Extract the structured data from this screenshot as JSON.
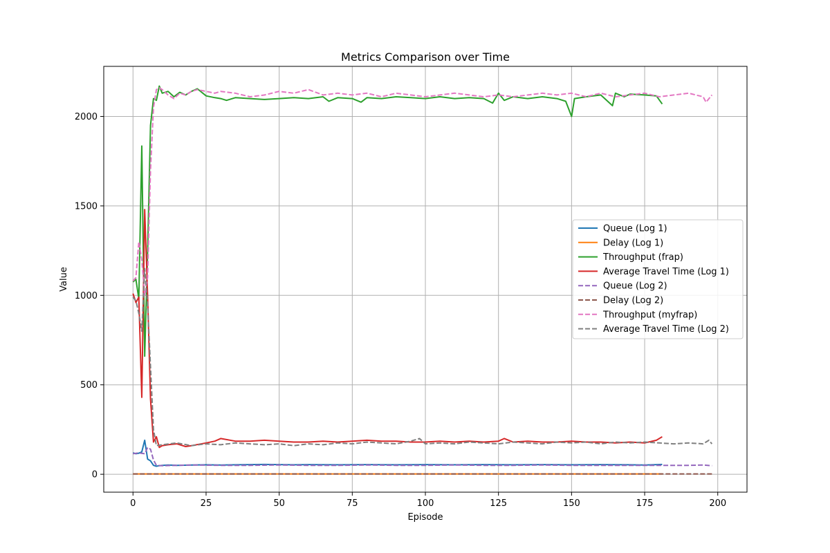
{
  "chart_data": {
    "type": "line",
    "title": "Metrics Comparison over Time",
    "xlabel": "Episode",
    "ylabel": "Value",
    "xlim": [
      -10,
      210
    ],
    "ylim": [
      -100,
      2280
    ],
    "xticks": [
      0,
      25,
      50,
      75,
      100,
      125,
      150,
      175,
      200
    ],
    "yticks": [
      0,
      500,
      1000,
      1500,
      2000
    ],
    "grid": true,
    "legend_position": "center-right",
    "series": [
      {
        "name": "Queue (Log 1)",
        "color": "#1f77b4",
        "dash": "solid",
        "points": [
          [
            0,
            120
          ],
          [
            1,
            115
          ],
          [
            2,
            118
          ],
          [
            3,
            125
          ],
          [
            4,
            190
          ],
          [
            5,
            85
          ],
          [
            6,
            75
          ],
          [
            7,
            50
          ],
          [
            8,
            45
          ],
          [
            9,
            48
          ],
          [
            10,
            50
          ],
          [
            12,
            52
          ],
          [
            15,
            50
          ],
          [
            20,
            52
          ],
          [
            25,
            53
          ],
          [
            30,
            52
          ],
          [
            35,
            53
          ],
          [
            40,
            54
          ],
          [
            45,
            55
          ],
          [
            50,
            54
          ],
          [
            55,
            53
          ],
          [
            60,
            54
          ],
          [
            70,
            53
          ],
          [
            80,
            54
          ],
          [
            90,
            53
          ],
          [
            100,
            54
          ],
          [
            110,
            53
          ],
          [
            120,
            54
          ],
          [
            130,
            53
          ],
          [
            140,
            54
          ],
          [
            150,
            53
          ],
          [
            160,
            54
          ],
          [
            170,
            53
          ],
          [
            175,
            52
          ],
          [
            181,
            55
          ]
        ]
      },
      {
        "name": "Delay (Log 1)",
        "color": "#ff7f0e",
        "dash": "solid",
        "points": [
          [
            0,
            2
          ],
          [
            50,
            2
          ],
          [
            100,
            2
          ],
          [
            150,
            2
          ],
          [
            181,
            2
          ]
        ]
      },
      {
        "name": "Throughput (frap)",
        "color": "#2ca02c",
        "dash": "solid",
        "points": [
          [
            0,
            1075
          ],
          [
            1,
            1090
          ],
          [
            2,
            980
          ],
          [
            3,
            1835
          ],
          [
            4,
            660
          ],
          [
            5,
            1240
          ],
          [
            6,
            1950
          ],
          [
            7,
            2100
          ],
          [
            8,
            2090
          ],
          [
            9,
            2170
          ],
          [
            10,
            2130
          ],
          [
            12,
            2140
          ],
          [
            14,
            2110
          ],
          [
            16,
            2135
          ],
          [
            18,
            2120
          ],
          [
            20,
            2140
          ],
          [
            22,
            2155
          ],
          [
            25,
            2115
          ],
          [
            28,
            2105
          ],
          [
            30,
            2100
          ],
          [
            32,
            2090
          ],
          [
            35,
            2105
          ],
          [
            40,
            2100
          ],
          [
            45,
            2095
          ],
          [
            50,
            2100
          ],
          [
            55,
            2105
          ],
          [
            60,
            2100
          ],
          [
            65,
            2110
          ],
          [
            67,
            2085
          ],
          [
            70,
            2105
          ],
          [
            75,
            2100
          ],
          [
            78,
            2080
          ],
          [
            80,
            2105
          ],
          [
            85,
            2100
          ],
          [
            90,
            2110
          ],
          [
            95,
            2105
          ],
          [
            100,
            2100
          ],
          [
            105,
            2110
          ],
          [
            110,
            2100
          ],
          [
            115,
            2105
          ],
          [
            120,
            2100
          ],
          [
            123,
            2075
          ],
          [
            125,
            2130
          ],
          [
            127,
            2090
          ],
          [
            130,
            2110
          ],
          [
            135,
            2100
          ],
          [
            140,
            2110
          ],
          [
            145,
            2100
          ],
          [
            148,
            2085
          ],
          [
            150,
            2000
          ],
          [
            151,
            2100
          ],
          [
            155,
            2110
          ],
          [
            160,
            2120
          ],
          [
            164,
            2060
          ],
          [
            165,
            2130
          ],
          [
            168,
            2110
          ],
          [
            170,
            2125
          ],
          [
            175,
            2120
          ],
          [
            179,
            2115
          ],
          [
            181,
            2070
          ]
        ]
      },
      {
        "name": "Average Travel Time (Log 1)",
        "color": "#d62728",
        "dash": "solid",
        "points": [
          [
            0,
            1010
          ],
          [
            1,
            960
          ],
          [
            2,
            990
          ],
          [
            3,
            430
          ],
          [
            4,
            1480
          ],
          [
            5,
            1000
          ],
          [
            6,
            420
          ],
          [
            7,
            180
          ],
          [
            8,
            210
          ],
          [
            9,
            150
          ],
          [
            10,
            160
          ],
          [
            12,
            165
          ],
          [
            15,
            170
          ],
          [
            18,
            155
          ],
          [
            20,
            160
          ],
          [
            25,
            175
          ],
          [
            28,
            185
          ],
          [
            30,
            200
          ],
          [
            35,
            185
          ],
          [
            40,
            185
          ],
          [
            45,
            190
          ],
          [
            50,
            185
          ],
          [
            55,
            180
          ],
          [
            60,
            180
          ],
          [
            65,
            185
          ],
          [
            70,
            180
          ],
          [
            75,
            185
          ],
          [
            80,
            190
          ],
          [
            85,
            185
          ],
          [
            90,
            185
          ],
          [
            95,
            180
          ],
          [
            100,
            180
          ],
          [
            105,
            185
          ],
          [
            110,
            180
          ],
          [
            115,
            185
          ],
          [
            120,
            180
          ],
          [
            125,
            185
          ],
          [
            127,
            200
          ],
          [
            130,
            180
          ],
          [
            135,
            185
          ],
          [
            140,
            180
          ],
          [
            145,
            180
          ],
          [
            150,
            185
          ],
          [
            155,
            180
          ],
          [
            160,
            180
          ],
          [
            165,
            175
          ],
          [
            170,
            180
          ],
          [
            175,
            175
          ],
          [
            179,
            190
          ],
          [
            181,
            210
          ]
        ]
      },
      {
        "name": "Queue (Log 2)",
        "color": "#9467bd",
        "dash": "dashed",
        "points": [
          [
            0,
            115
          ],
          [
            2,
            120
          ],
          [
            4,
            115
          ],
          [
            5,
            150
          ],
          [
            6,
            140
          ],
          [
            7,
            80
          ],
          [
            8,
            50
          ],
          [
            10,
            48
          ],
          [
            15,
            50
          ],
          [
            20,
            52
          ],
          [
            30,
            50
          ],
          [
            40,
            50
          ],
          [
            50,
            52
          ],
          [
            60,
            50
          ],
          [
            70,
            50
          ],
          [
            80,
            52
          ],
          [
            90,
            50
          ],
          [
            100,
            50
          ],
          [
            110,
            52
          ],
          [
            120,
            50
          ],
          [
            130,
            50
          ],
          [
            140,
            52
          ],
          [
            150,
            50
          ],
          [
            160,
            50
          ],
          [
            170,
            50
          ],
          [
            180,
            50
          ],
          [
            190,
            50
          ],
          [
            195,
            52
          ],
          [
            198,
            48
          ]
        ]
      },
      {
        "name": "Delay (Log 2)",
        "color": "#8c564b",
        "dash": "dashed",
        "points": [
          [
            0,
            2
          ],
          [
            50,
            2
          ],
          [
            100,
            2
          ],
          [
            150,
            2
          ],
          [
            198,
            2
          ]
        ]
      },
      {
        "name": "Throughput (myfrap)",
        "color": "#e377c2",
        "dash": "dashed",
        "points": [
          [
            0,
            1080
          ],
          [
            1,
            1100
          ],
          [
            2,
            1300
          ],
          [
            3,
            1200
          ],
          [
            4,
            1000
          ],
          [
            5,
            1100
          ],
          [
            6,
            1700
          ],
          [
            7,
            2050
          ],
          [
            8,
            2150
          ],
          [
            9,
            2160
          ],
          [
            10,
            2150
          ],
          [
            12,
            2120
          ],
          [
            14,
            2100
          ],
          [
            16,
            2130
          ],
          [
            18,
            2120
          ],
          [
            20,
            2140
          ],
          [
            22,
            2150
          ],
          [
            25,
            2140
          ],
          [
            28,
            2130
          ],
          [
            30,
            2140
          ],
          [
            35,
            2130
          ],
          [
            40,
            2110
          ],
          [
            45,
            2120
          ],
          [
            50,
            2140
          ],
          [
            55,
            2130
          ],
          [
            60,
            2150
          ],
          [
            65,
            2120
          ],
          [
            70,
            2130
          ],
          [
            75,
            2120
          ],
          [
            80,
            2130
          ],
          [
            85,
            2110
          ],
          [
            90,
            2130
          ],
          [
            95,
            2120
          ],
          [
            100,
            2110
          ],
          [
            105,
            2120
          ],
          [
            110,
            2130
          ],
          [
            115,
            2120
          ],
          [
            120,
            2110
          ],
          [
            125,
            2120
          ],
          [
            130,
            2110
          ],
          [
            135,
            2120
          ],
          [
            140,
            2130
          ],
          [
            145,
            2120
          ],
          [
            150,
            2130
          ],
          [
            155,
            2110
          ],
          [
            160,
            2130
          ],
          [
            165,
            2110
          ],
          [
            170,
            2120
          ],
          [
            175,
            2130
          ],
          [
            180,
            2110
          ],
          [
            185,
            2120
          ],
          [
            190,
            2130
          ],
          [
            195,
            2110
          ],
          [
            196,
            2080
          ],
          [
            198,
            2120
          ]
        ]
      },
      {
        "name": "Average Travel Time (Log 2)",
        "color": "#7f7f7f",
        "dash": "dashed",
        "points": [
          [
            0,
            990
          ],
          [
            1,
            970
          ],
          [
            2,
            900
          ],
          [
            3,
            800
          ],
          [
            4,
            1150
          ],
          [
            5,
            950
          ],
          [
            6,
            600
          ],
          [
            7,
            250
          ],
          [
            8,
            160
          ],
          [
            10,
            165
          ],
          [
            15,
            175
          ],
          [
            20,
            160
          ],
          [
            25,
            170
          ],
          [
            30,
            165
          ],
          [
            35,
            175
          ],
          [
            40,
            170
          ],
          [
            45,
            165
          ],
          [
            50,
            170
          ],
          [
            55,
            160
          ],
          [
            60,
            170
          ],
          [
            65,
            165
          ],
          [
            70,
            175
          ],
          [
            75,
            170
          ],
          [
            80,
            180
          ],
          [
            85,
            175
          ],
          [
            90,
            170
          ],
          [
            95,
            185
          ],
          [
            98,
            200
          ],
          [
            100,
            170
          ],
          [
            105,
            175
          ],
          [
            110,
            170
          ],
          [
            115,
            180
          ],
          [
            120,
            175
          ],
          [
            125,
            170
          ],
          [
            130,
            180
          ],
          [
            135,
            175
          ],
          [
            140,
            170
          ],
          [
            145,
            180
          ],
          [
            150,
            175
          ],
          [
            155,
            180
          ],
          [
            160,
            170
          ],
          [
            165,
            180
          ],
          [
            170,
            175
          ],
          [
            175,
            180
          ],
          [
            180,
            175
          ],
          [
            185,
            170
          ],
          [
            190,
            175
          ],
          [
            195,
            170
          ],
          [
            197,
            190
          ],
          [
            198,
            170
          ]
        ]
      }
    ]
  }
}
